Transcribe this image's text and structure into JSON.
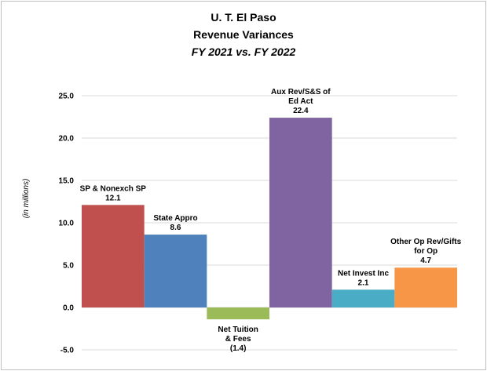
{
  "chart_data": {
    "type": "bar",
    "title": [
      "U. T. El Paso",
      "Revenue Variances"
    ],
    "subtitle": "FY 2021 vs. FY 2022",
    "ylabel": "(in  millions)",
    "ylim": [
      -5.0,
      25.0
    ],
    "yticks": [
      -5.0,
      0.0,
      5.0,
      10.0,
      15.0,
      20.0,
      25.0
    ],
    "ytick_labels": [
      "-5.0",
      "0.0",
      "5.0",
      "10.0",
      "15.0",
      "20.0",
      "25.0"
    ],
    "grid": true,
    "categories": [
      {
        "label": [
          "SP & Nonexch SP"
        ],
        "value": 12.1,
        "value_label": "12.1",
        "color": "#c0504d"
      },
      {
        "label": [
          "State Appro"
        ],
        "value": 8.6,
        "value_label": "8.6",
        "color": "#4f81bd"
      },
      {
        "label": [
          "Net Tuition",
          "& Fees"
        ],
        "value": -1.4,
        "value_label": "(1.4)",
        "color": "#9bbb59"
      },
      {
        "label": [
          "Aux Rev/S&S of",
          "Ed Act"
        ],
        "value": 22.4,
        "value_label": "22.4",
        "color": "#8064a2"
      },
      {
        "label": [
          "Net Invest Inc"
        ],
        "value": 2.1,
        "value_label": "2.1",
        "color": "#4bacc6"
      },
      {
        "label": [
          "Other Op Rev/Gifts",
          "for Op"
        ],
        "value": 4.7,
        "value_label": "4.7",
        "color": "#f79646"
      }
    ]
  }
}
